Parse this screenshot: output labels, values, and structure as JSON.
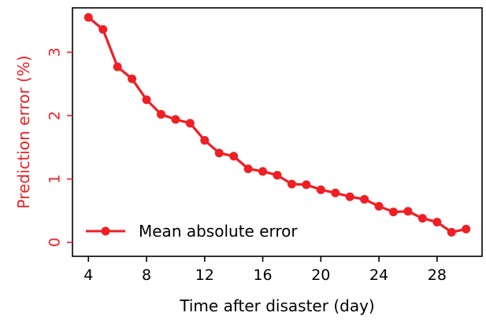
{
  "accent_color": "#ef1f24",
  "chart_data": {
    "type": "line",
    "title": "",
    "xlabel": "Time after disaster (day)",
    "ylabel": "Prediction error (%)",
    "xlim": [
      2.9,
      31.1
    ],
    "ylim": [
      -0.22,
      3.7
    ],
    "xticks": [
      4,
      8,
      12,
      16,
      20,
      24,
      28
    ],
    "yticks": [
      0,
      1,
      2,
      3
    ],
    "grid": false,
    "legend_position": "lower-left",
    "series": [
      {
        "name": "Mean absolute error",
        "color": "#ef1f24",
        "marker": "circle",
        "x": [
          4,
          5,
          6,
          7,
          8,
          9,
          10,
          11,
          12,
          13,
          14,
          15,
          16,
          17,
          18,
          19,
          20,
          21,
          22,
          23,
          24,
          25,
          26,
          27,
          28,
          29,
          30
        ],
        "y": [
          3.55,
          3.36,
          2.77,
          2.58,
          2.25,
          2.02,
          1.94,
          1.88,
          1.61,
          1.41,
          1.36,
          1.16,
          1.12,
          1.06,
          0.92,
          0.91,
          0.83,
          0.78,
          0.72,
          0.68,
          0.57,
          0.48,
          0.49,
          0.38,
          0.32,
          0.16,
          0.21
        ]
      }
    ]
  }
}
